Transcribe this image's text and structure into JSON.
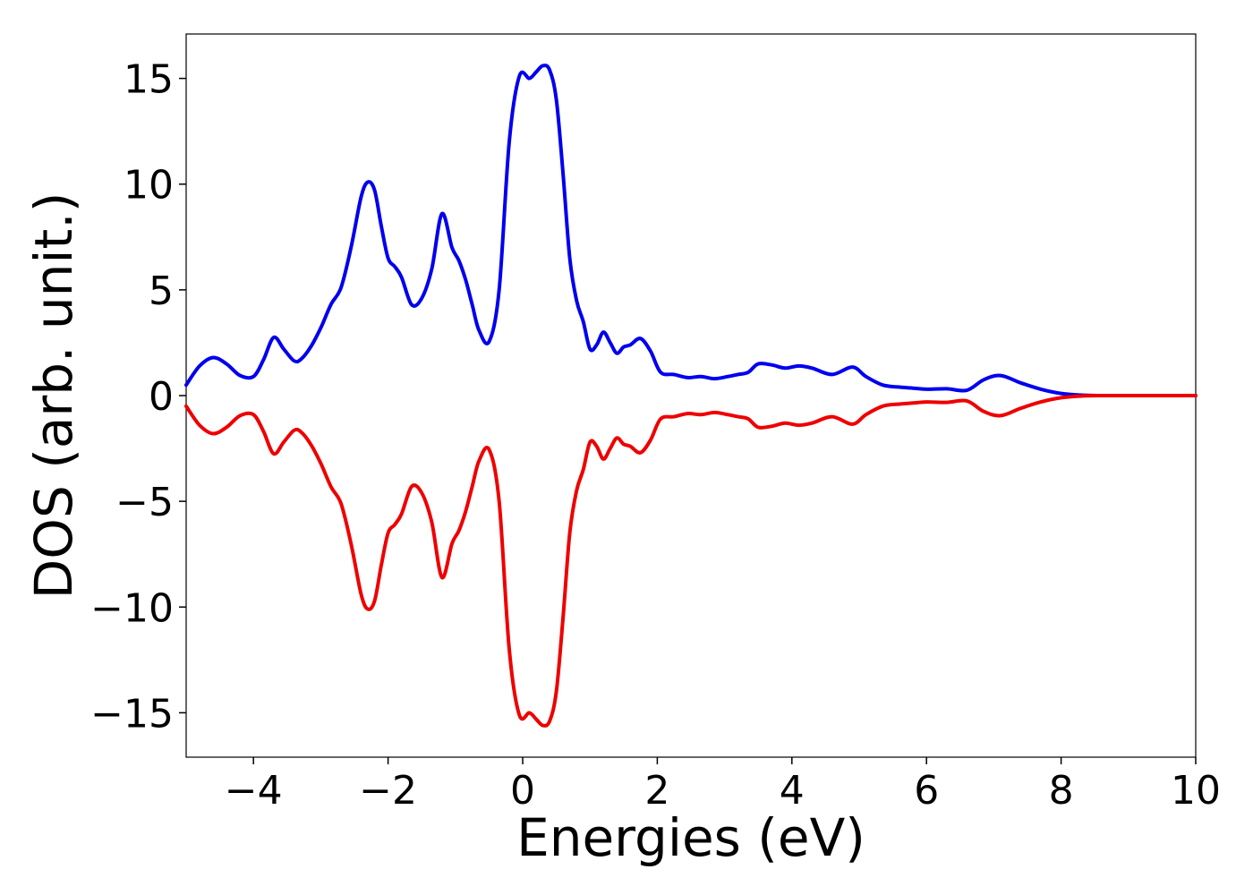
{
  "chart_data": {
    "type": "line",
    "title": "",
    "xlabel": "Energies (eV)",
    "ylabel": "DOS (arb. unit.)",
    "xlim": [
      -5,
      10
    ],
    "ylim": [
      -17.1,
      17.1
    ],
    "xticks": [
      -4,
      -2,
      0,
      2,
      4,
      6,
      8,
      10
    ],
    "yticks": [
      -15,
      -10,
      -5,
      0,
      5,
      10,
      15
    ],
    "xtick_labels": [
      "−4",
      "−2",
      "0",
      "2",
      "4",
      "6",
      "8",
      "10"
    ],
    "ytick_labels": [
      "−15",
      "−10",
      "−5",
      "0",
      "5",
      "10",
      "15"
    ],
    "grid": false,
    "legend": "none",
    "x": [
      -5.0,
      -4.8,
      -4.6,
      -4.4,
      -4.2,
      -4.0,
      -3.85,
      -3.7,
      -3.55,
      -3.4,
      -3.3,
      -3.15,
      -3.0,
      -2.85,
      -2.7,
      -2.55,
      -2.4,
      -2.3,
      -2.2,
      -2.1,
      -2.0,
      -1.9,
      -1.8,
      -1.65,
      -1.5,
      -1.35,
      -1.2,
      -1.05,
      -0.95,
      -0.85,
      -0.75,
      -0.65,
      -0.5,
      -0.35,
      -0.2,
      -0.05,
      0.1,
      0.2,
      0.3,
      0.4,
      0.5,
      0.6,
      0.7,
      0.8,
      0.9,
      1.0,
      1.1,
      1.2,
      1.3,
      1.4,
      1.5,
      1.6,
      1.75,
      1.9,
      2.05,
      2.25,
      2.45,
      2.65,
      2.85,
      3.05,
      3.2,
      3.35,
      3.5,
      3.7,
      3.9,
      4.1,
      4.3,
      4.6,
      4.9,
      5.1,
      5.35,
      5.6,
      5.8,
      6.0,
      6.3,
      6.6,
      6.85,
      7.1,
      7.4,
      7.7,
      8.0,
      8.3,
      8.6,
      8.8,
      8.95,
      9.1,
      9.3,
      9.5,
      9.8,
      10.0
    ],
    "series": [
      {
        "color": "#0000ee",
        "values": [
          0.5,
          1.4,
          1.8,
          1.5,
          0.95,
          0.9,
          1.7,
          2.75,
          2.2,
          1.65,
          1.7,
          2.3,
          3.2,
          4.3,
          5.1,
          7.0,
          9.4,
          10.1,
          9.7,
          8.0,
          6.5,
          6.1,
          5.6,
          4.3,
          4.6,
          6.0,
          8.6,
          7.0,
          6.4,
          5.5,
          4.3,
          3.1,
          2.55,
          5.0,
          12.0,
          15.1,
          15.0,
          15.3,
          15.6,
          15.4,
          14.0,
          10.5,
          6.5,
          4.5,
          3.5,
          2.2,
          2.4,
          3.0,
          2.5,
          2.0,
          2.3,
          2.4,
          2.7,
          2.1,
          1.1,
          1.0,
          0.85,
          0.9,
          0.8,
          0.9,
          1.0,
          1.1,
          1.5,
          1.45,
          1.3,
          1.4,
          1.3,
          1.0,
          1.35,
          0.9,
          0.5,
          0.4,
          0.35,
          0.3,
          0.32,
          0.25,
          0.75,
          0.95,
          0.6,
          0.3,
          0.1,
          0.02,
          0.0,
          0.0,
          0.0,
          0.0,
          0.0,
          0.0,
          0.0,
          0.0
        ]
      },
      {
        "color": "#ee0000",
        "values": [
          -0.5,
          -1.4,
          -1.8,
          -1.5,
          -0.95,
          -0.9,
          -1.7,
          -2.75,
          -2.2,
          -1.65,
          -1.7,
          -2.3,
          -3.2,
          -4.3,
          -5.1,
          -7.0,
          -9.4,
          -10.1,
          -9.7,
          -8.0,
          -6.5,
          -6.1,
          -5.6,
          -4.3,
          -4.6,
          -6.0,
          -8.6,
          -7.0,
          -6.4,
          -5.5,
          -4.3,
          -3.1,
          -2.55,
          -5.0,
          -12.0,
          -15.1,
          -15.0,
          -15.3,
          -15.6,
          -15.4,
          -14.0,
          -10.5,
          -6.5,
          -4.5,
          -3.5,
          -2.2,
          -2.4,
          -3.0,
          -2.5,
          -2.0,
          -2.3,
          -2.4,
          -2.7,
          -2.1,
          -1.1,
          -1.0,
          -0.85,
          -0.9,
          -0.8,
          -0.9,
          -1.0,
          -1.1,
          -1.5,
          -1.45,
          -1.3,
          -1.4,
          -1.3,
          -1.0,
          -1.35,
          -0.9,
          -0.5,
          -0.4,
          -0.35,
          -0.3,
          -0.32,
          -0.25,
          -0.75,
          -0.95,
          -0.6,
          -0.3,
          -0.1,
          -0.02,
          0.0,
          0.0,
          0.0,
          0.0,
          0.0,
          0.0,
          0.0,
          0.0
        ]
      }
    ]
  }
}
